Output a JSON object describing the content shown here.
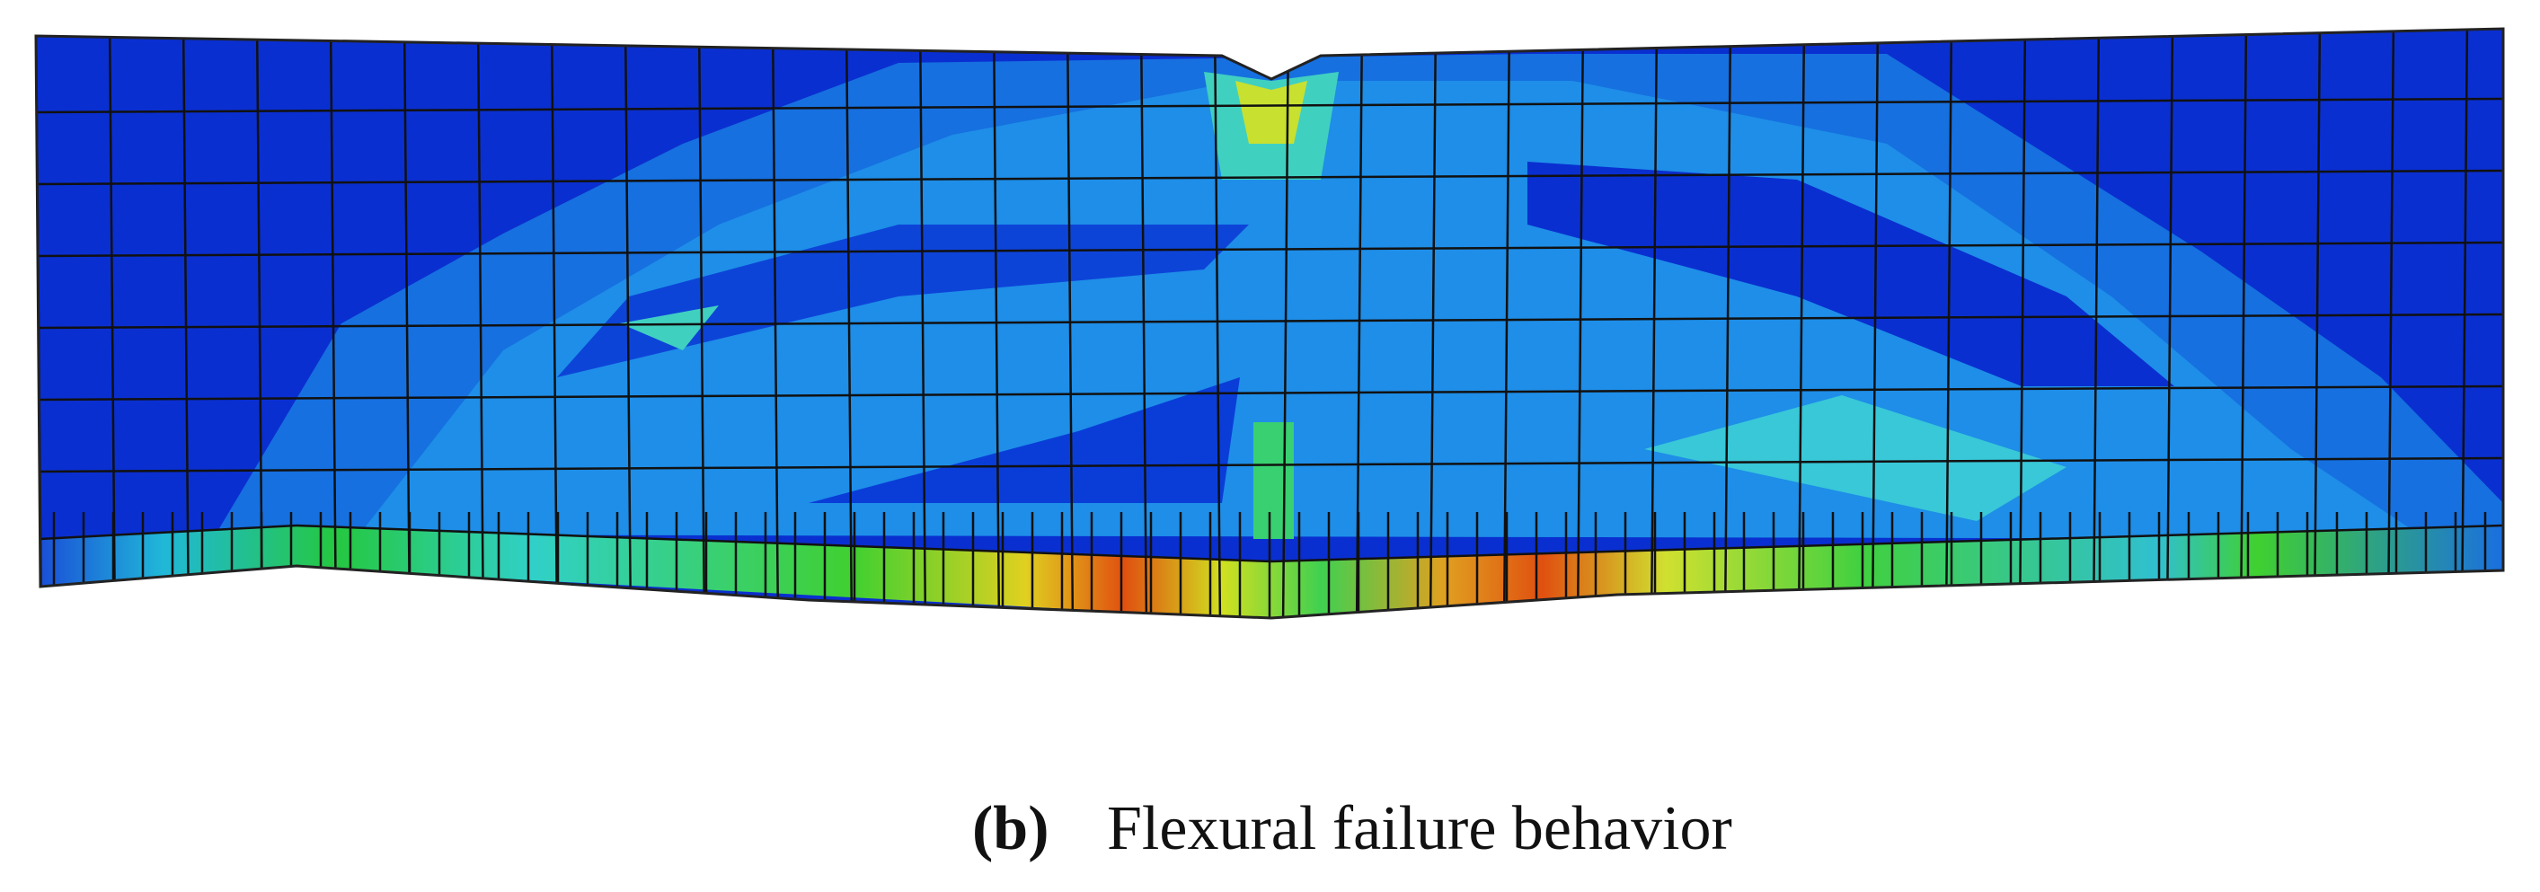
{
  "caption": {
    "label": "(b)",
    "text": "Flexural failure behavior"
  }
}
